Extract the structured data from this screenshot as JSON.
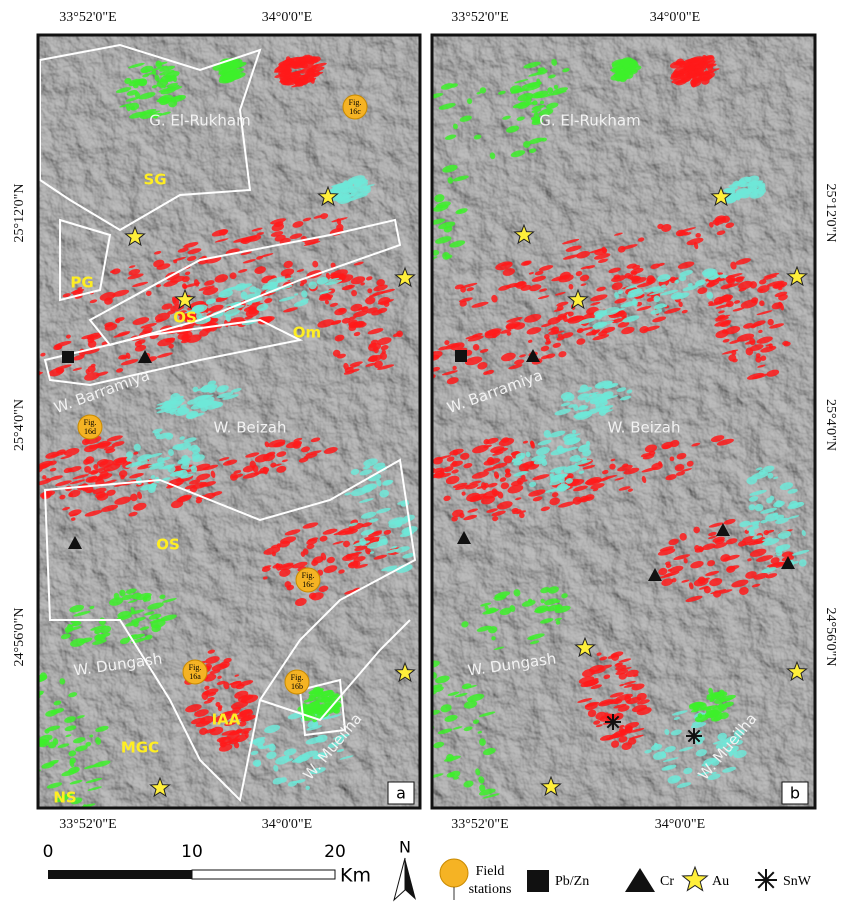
{
  "map": {
    "lon_labels": [
      "33°52'0\"E",
      "34°0'0\"E"
    ],
    "lat_labels": [
      "25°12'0\"N",
      "25°4'0\"N",
      "24°56'0\"N"
    ],
    "panels": [
      {
        "label": "a",
        "places": [
          "G. El-Rukham",
          "SG",
          "PG",
          "OS",
          "Om",
          "W. Barramiya",
          "W. Beizah",
          "OS",
          "W. Dungash",
          "IAA",
          "MGC",
          "NS",
          "W. Mueilha"
        ],
        "stations": [
          [
            "Fig.",
            "16c"
          ],
          [
            "Fig.",
            "16d"
          ],
          [
            "Fig.",
            "16c"
          ],
          [
            "Fig.",
            "16a"
          ],
          [
            "Fig.",
            "16b"
          ]
        ]
      },
      {
        "label": "b",
        "places": [
          "G. El-Rukham",
          "W. Barramiya",
          "W. Beizah",
          "W. Dungash",
          "W. Mueilha"
        ]
      }
    ],
    "scale": {
      "ticks": [
        "0",
        "10",
        "20"
      ],
      "unit": "Km"
    },
    "north": "N",
    "legend": [
      [
        "Field",
        "stations"
      ],
      "Pb/Zn",
      "Cr",
      "Au",
      "SnW"
    ]
  }
}
